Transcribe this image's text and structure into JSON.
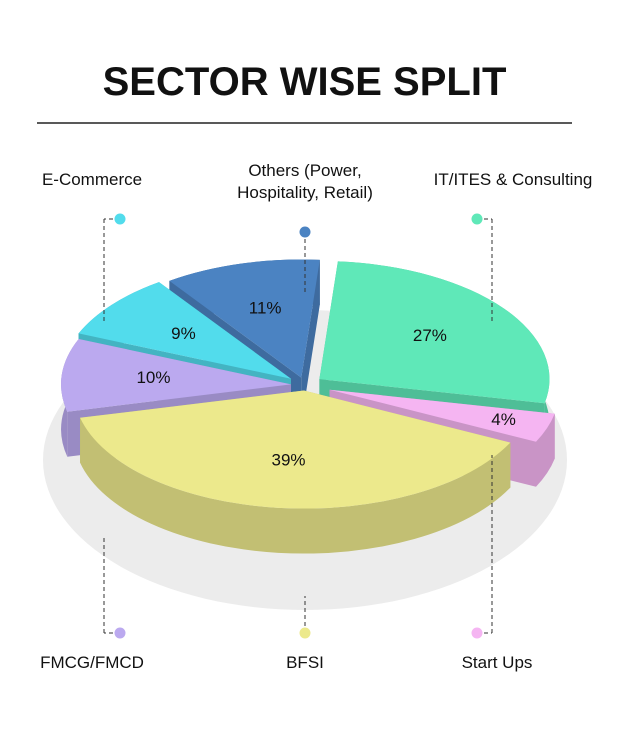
{
  "chart_data": {
    "type": "pie3d",
    "title": "SECTOR WISE SPLIT",
    "categories": [
      "Others (Power, Hospitality, Retail)",
      "IT/ITES & Consulting",
      "Start Ups",
      "BFSI",
      "FMCG/FMCD",
      "E-Commerce"
    ],
    "values": [
      11,
      27,
      4,
      39,
      10,
      9
    ],
    "value_labels": [
      "11%",
      "27%",
      "4%",
      "39%",
      "10%",
      "9%"
    ],
    "colors": [
      "#4b83c2",
      "#5fe8b8",
      "#f5b5f2",
      "#ece98c",
      "#bba9ef",
      "#52dcec"
    ]
  }
}
